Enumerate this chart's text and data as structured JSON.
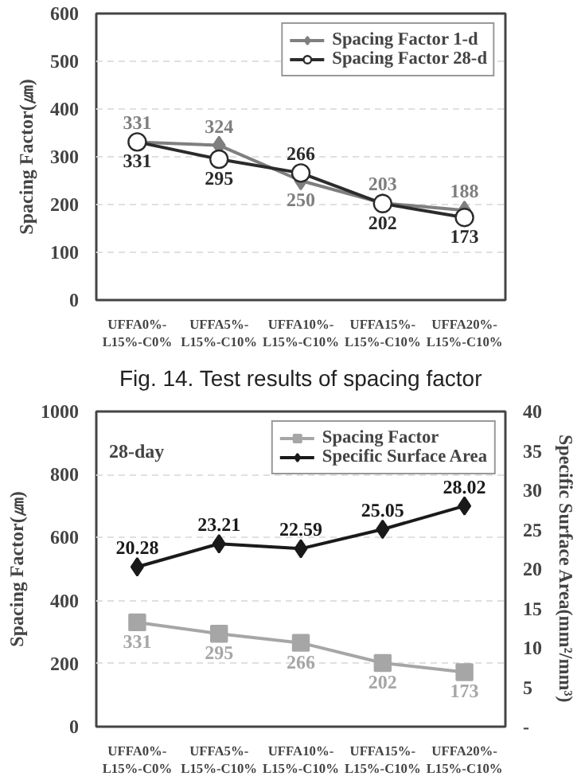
{
  "chart_data": [
    {
      "type": "line",
      "categories": [
        "UFFA0%-L15%-C0%",
        "UFFA5%-L15%-C10%",
        "UFFA10%-L15%-C10%",
        "UFFA15%-L15%-C10%",
        "UFFA20%-L15%-C10%"
      ],
      "ylabel": "Spacing Factor(㎛)",
      "ylim": [
        0,
        600
      ],
      "yticks": [
        0,
        100,
        200,
        300,
        400,
        500,
        600
      ],
      "grid": "y",
      "legend": "top right",
      "annotations": [
        "Fig. 14. Test results of spacing factor"
      ],
      "series": [
        {
          "name": "Spacing Factor 1-d",
          "color": "#7f7f7f",
          "marker": "diamond",
          "values": [
            331,
            324,
            250,
            203,
            188
          ],
          "value_labels": [
            "331",
            "324",
            "250",
            "203",
            "188"
          ]
        },
        {
          "name": "Spacing Factor 28-d",
          "color": "#2b2b2b",
          "marker": "circle",
          "values": [
            331,
            295,
            266,
            202,
            173
          ],
          "value_labels": [
            "331",
            "295",
            "266",
            "202",
            "173"
          ]
        }
      ]
    },
    {
      "type": "line",
      "categories": [
        "UFFA0%-L15%-C0%",
        "UFFA5%-L15%-C10%",
        "UFFA10%-L15%-C10%",
        "UFFA15%-L15%-C10%",
        "UFFA20%-L15%-C10%"
      ],
      "ylabel": "Spacing Factor(㎛)",
      "y2label": "Specific Surface Area(mm²/mm³)",
      "ylim": [
        0,
        1000
      ],
      "yticks": [
        0,
        200,
        400,
        600,
        800,
        1000
      ],
      "y2lim": [
        0,
        40
      ],
      "y2ticks": [
        {
          "value": 0,
          "label": "-"
        },
        5,
        10,
        15,
        20,
        25,
        30,
        35,
        40
      ],
      "grid": "y",
      "legend": "top right",
      "annotations": [
        "28-day"
      ],
      "series": [
        {
          "name": "Spacing Factor",
          "color": "#a6a6a6",
          "marker": "square",
          "values": [
            331,
            295,
            266,
            202,
            173
          ],
          "value_labels": [
            "331",
            "295",
            "266",
            "202",
            "173"
          ]
        },
        {
          "name": "Specific Surface Area",
          "color": "#1a1a1a",
          "marker": "diamond",
          "axis": "y2",
          "values": [
            20.28,
            23.21,
            22.59,
            25.05,
            28.02
          ],
          "value_labels": [
            "20.28",
            "23.21",
            "22.59",
            "25.05",
            "28.02"
          ]
        }
      ]
    }
  ]
}
